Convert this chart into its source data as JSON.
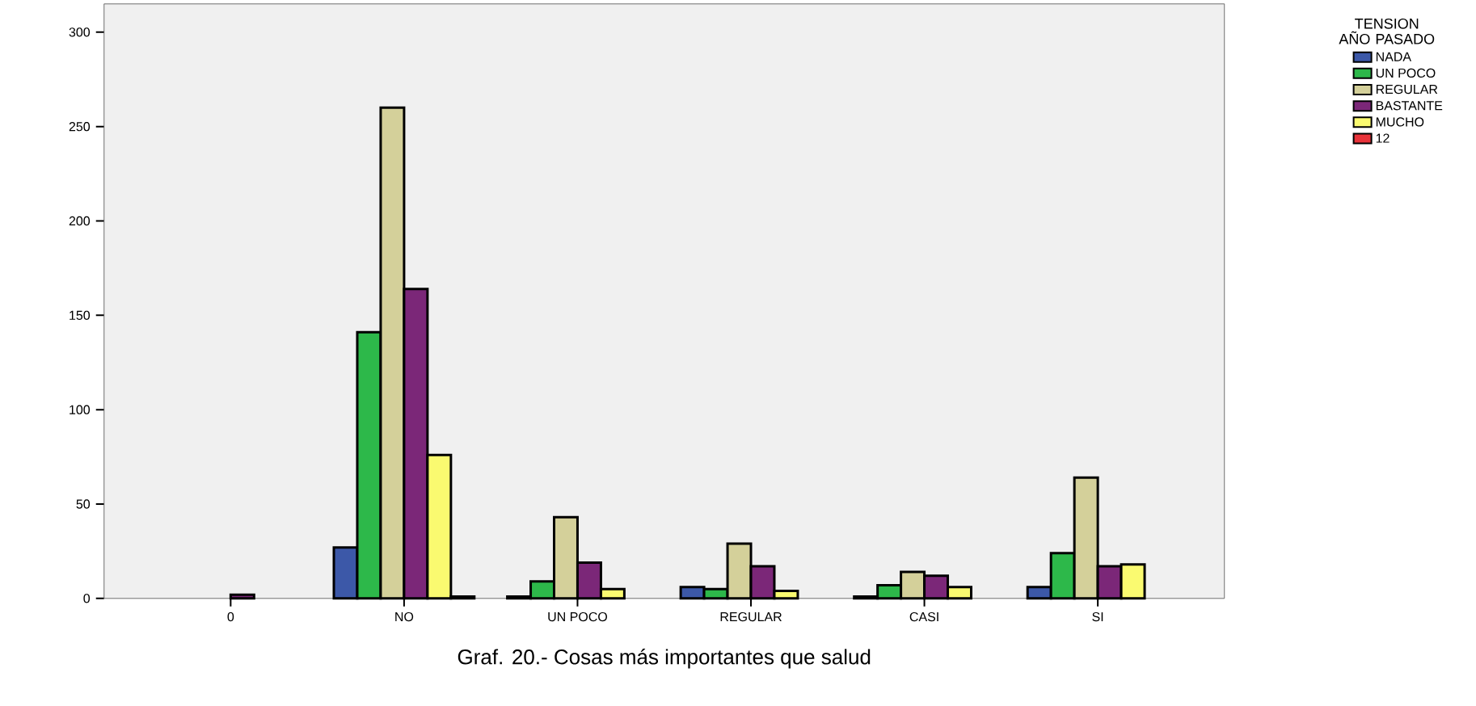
{
  "chart_data": {
    "type": "bar",
    "categories": [
      "0",
      "NO",
      "UN POCO",
      "REGULAR",
      "CASI",
      "SI"
    ],
    "series": [
      {
        "name": "NADA",
        "color": "#3c58a8",
        "values": [
          null,
          27,
          1,
          6,
          1,
          6
        ]
      },
      {
        "name": "UN POCO",
        "color": "#2db84a",
        "values": [
          null,
          141,
          9,
          5,
          7,
          24
        ]
      },
      {
        "name": "REGULAR",
        "color": "#d4d09a",
        "values": [
          null,
          260,
          43,
          29,
          14,
          64
        ]
      },
      {
        "name": "BASTANTE",
        "color": "#7b2778",
        "values": [
          2,
          164,
          19,
          17,
          12,
          17
        ]
      },
      {
        "name": "MUCHO",
        "color": "#fafa70",
        "values": [
          null,
          76,
          5,
          4,
          6,
          18
        ]
      },
      {
        "name": "12",
        "color": "#e8333a",
        "values": [
          null,
          1,
          null,
          null,
          null,
          null
        ]
      }
    ],
    "ylim": [
      0,
      315
    ],
    "yticks": [
      0,
      50,
      100,
      150,
      200,
      250,
      300
    ],
    "legend": "top right",
    "legend_title": "TENSION AÑO PASADO",
    "grid": false,
    "annotations": [
      "Graf. 20.- Cosas más importantes que salud"
    ]
  }
}
